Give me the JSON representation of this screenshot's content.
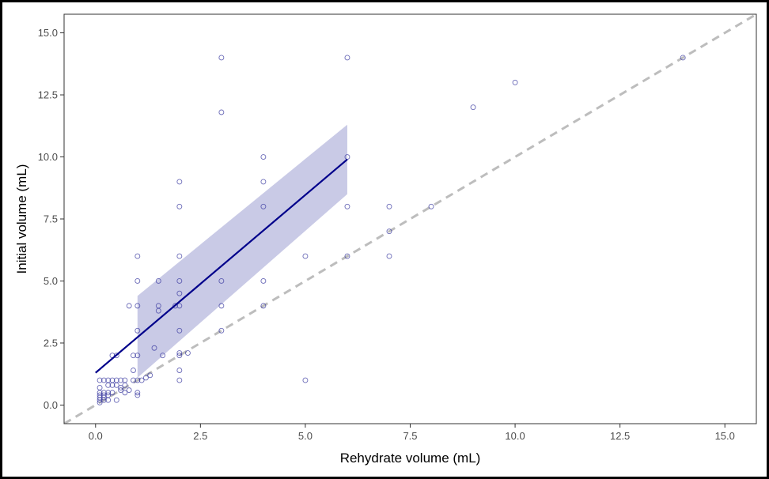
{
  "chart_data": {
    "type": "scatter",
    "xlabel": "Rehydrate volume (mL)",
    "ylabel": "Initial volume (mL)",
    "xlim": [
      -0.75,
      15.75
    ],
    "ylim": [
      -0.75,
      15.75
    ],
    "x_ticks": [
      0,
      2.5,
      5,
      7.5,
      10,
      12.5,
      15
    ],
    "y_ticks": [
      0,
      2.5,
      5,
      7.5,
      10,
      12.5,
      15
    ],
    "x_tick_labels": [
      "0.0",
      "2.5",
      "5.0",
      "7.5",
      "10.0",
      "12.5",
      "15.0"
    ],
    "y_tick_labels": [
      "0.0",
      "2.5",
      "5.0",
      "7.5",
      "10.0",
      "12.5",
      "15.0"
    ],
    "grid": false,
    "colors": {
      "points": "#3a3aa0",
      "fit_line": "#00008b",
      "ribbon": "#c9cae6",
      "identity_line": "#bdbdbd",
      "axis": "#333333"
    },
    "points": [
      [
        0.1,
        0.1
      ],
      [
        0.1,
        0.2
      ],
      [
        0.1,
        0.3
      ],
      [
        0.1,
        0.4
      ],
      [
        0.1,
        0.5
      ],
      [
        0.1,
        0.7
      ],
      [
        0.1,
        1.0
      ],
      [
        0.2,
        0.2
      ],
      [
        0.2,
        0.3
      ],
      [
        0.2,
        0.4
      ],
      [
        0.2,
        0.5
      ],
      [
        0.2,
        1.0
      ],
      [
        0.3,
        0.2
      ],
      [
        0.3,
        0.4
      ],
      [
        0.3,
        0.5
      ],
      [
        0.3,
        0.8
      ],
      [
        0.3,
        1.0
      ],
      [
        0.4,
        0.5
      ],
      [
        0.4,
        0.8
      ],
      [
        0.4,
        1.0
      ],
      [
        0.4,
        2.0
      ],
      [
        0.5,
        0.2
      ],
      [
        0.5,
        0.8
      ],
      [
        0.5,
        1.0
      ],
      [
        0.5,
        2.0
      ],
      [
        0.6,
        0.6
      ],
      [
        0.6,
        0.7
      ],
      [
        0.6,
        1.0
      ],
      [
        0.7,
        0.5
      ],
      [
        0.7,
        0.8
      ],
      [
        0.7,
        1.0
      ],
      [
        0.8,
        0.6
      ],
      [
        0.8,
        4.0
      ],
      [
        0.9,
        1.0
      ],
      [
        0.9,
        1.4
      ],
      [
        0.9,
        2.0
      ],
      [
        1.0,
        0.4
      ],
      [
        1.0,
        0.5
      ],
      [
        1.0,
        1.0
      ],
      [
        1.0,
        2.0
      ],
      [
        1.0,
        3.0
      ],
      [
        1.0,
        4.0
      ],
      [
        1.0,
        5.0
      ],
      [
        1.0,
        6.0
      ],
      [
        1.1,
        1.0
      ],
      [
        1.2,
        1.1
      ],
      [
        1.3,
        1.2
      ],
      [
        1.4,
        2.3
      ],
      [
        1.5,
        3.8
      ],
      [
        1.5,
        4.0
      ],
      [
        1.5,
        5.0
      ],
      [
        1.6,
        2.0
      ],
      [
        1.9,
        4.0
      ],
      [
        2.0,
        1.0
      ],
      [
        2.0,
        1.4
      ],
      [
        2.0,
        2.0
      ],
      [
        2.0,
        2.1
      ],
      [
        2.0,
        3.0
      ],
      [
        2.0,
        4.0
      ],
      [
        2.0,
        4.5
      ],
      [
        2.0,
        5.0
      ],
      [
        2.0,
        6.0
      ],
      [
        2.0,
        8.0
      ],
      [
        2.0,
        9.0
      ],
      [
        2.2,
        2.1
      ],
      [
        3.0,
        3.0
      ],
      [
        3.0,
        4.0
      ],
      [
        3.0,
        5.0
      ],
      [
        3.0,
        11.8
      ],
      [
        3.0,
        14.0
      ],
      [
        4.0,
        4.0
      ],
      [
        4.0,
        5.0
      ],
      [
        4.0,
        8.0
      ],
      [
        4.0,
        9.0
      ],
      [
        4.0,
        10.0
      ],
      [
        5.0,
        1.0
      ],
      [
        5.0,
        6.0
      ],
      [
        6.0,
        6.0
      ],
      [
        6.0,
        8.0
      ],
      [
        6.0,
        10.0
      ],
      [
        6.0,
        14.0
      ],
      [
        7.0,
        6.0
      ],
      [
        7.0,
        7.0
      ],
      [
        7.0,
        8.0
      ],
      [
        8.0,
        8.0
      ],
      [
        9.0,
        12.0
      ],
      [
        10.0,
        13.0
      ],
      [
        14.0,
        14.0
      ]
    ],
    "fit_line": {
      "x": [
        0,
        6
      ],
      "y": [
        1.3,
        9.9
      ]
    },
    "confidence_band": {
      "x": [
        1,
        6
      ],
      "lower": [
        1.1,
        8.5
      ],
      "upper": [
        4.4,
        11.3
      ]
    },
    "identity_line": {
      "x": [
        -0.75,
        15.75
      ],
      "y": [
        -0.75,
        15.75
      ],
      "style": "dashed"
    }
  }
}
